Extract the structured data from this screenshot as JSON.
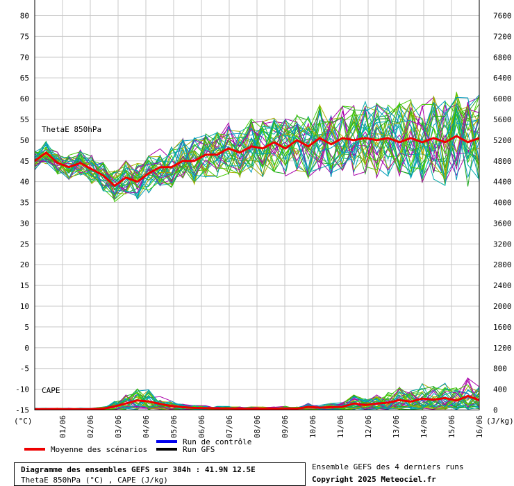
{
  "chart_data": {
    "type": "line",
    "y_left_ticks": [
      "80",
      "75",
      "70",
      "65",
      "60",
      "55",
      "50",
      "45",
      "40",
      "35",
      "30",
      "25",
      "20",
      "15",
      "10",
      "5",
      "0",
      "-5",
      "-10",
      "-15"
    ],
    "y_left_unit": "(°C)",
    "y_left_range": [
      -15,
      80
    ],
    "y_right_ticks": [
      "7600",
      "7200",
      "6800",
      "6400",
      "6000",
      "5600",
      "5200",
      "4800",
      "4400",
      "4000",
      "3600",
      "3200",
      "2800",
      "2400",
      "2000",
      "1600",
      "1200",
      "800",
      "400",
      "0"
    ],
    "y_right_unit": "(J/kg)",
    "y_right_range": [
      0,
      7600
    ],
    "x_ticks": [
      "01/06",
      "02/06",
      "03/06",
      "04/06",
      "05/06",
      "06/06",
      "07/06",
      "08/06",
      "09/06",
      "10/06",
      "11/06",
      "12/06",
      "13/06",
      "14/06",
      "15/06",
      "16/06"
    ],
    "annotations": {
      "thetae": "ThetaE 850hPa",
      "cape": "CAPE"
    },
    "legend": {
      "mean": "Moyenne des scénarios",
      "control": "Run de contrôle",
      "gfs": "Run GFS"
    },
    "mean_thetae": [
      45,
      47,
      44.5,
      43.5,
      44.5,
      43,
      41.5,
      39,
      41,
      40,
      42,
      43.5,
      43.5,
      45,
      45,
      46.5,
      46.5,
      48,
      47,
      48.5,
      48,
      49.5,
      48,
      50,
      48.5,
      50.5,
      49,
      50.5,
      50,
      50.5,
      50,
      50.5,
      49.5,
      50.5,
      49.5,
      50.5,
      49.5,
      51,
      49.5,
      50.5
    ],
    "mean_cape": [
      15,
      15,
      15,
      15,
      15,
      15,
      25,
      70,
      125,
      185,
      165,
      115,
      75,
      55,
      40,
      35,
      30,
      30,
      25,
      25,
      25,
      25,
      30,
      25,
      60,
      45,
      55,
      60,
      125,
      95,
      125,
      140,
      190,
      160,
      220,
      200,
      230,
      180,
      270,
      190
    ],
    "ensemble_colors": [
      "#22aa22",
      "#aaaa00",
      "#aa00aa",
      "#0099bb",
      "#44cc00",
      "#00aaaa"
    ],
    "mean_color": "#ee0000",
    "control_color": "#0000ee",
    "gfs_color": "#000000"
  },
  "footer": {
    "title": "Diagramme des ensembles GEFS sur 384h : 41.9N 12.5E",
    "subtitle": "ThetaE 850hPa (°C) , CAPE (J/kg)",
    "runs_note": "Ensemble GEFS des 4 derniers runs",
    "copyright": "Copyright 2025 Meteociel.fr"
  }
}
